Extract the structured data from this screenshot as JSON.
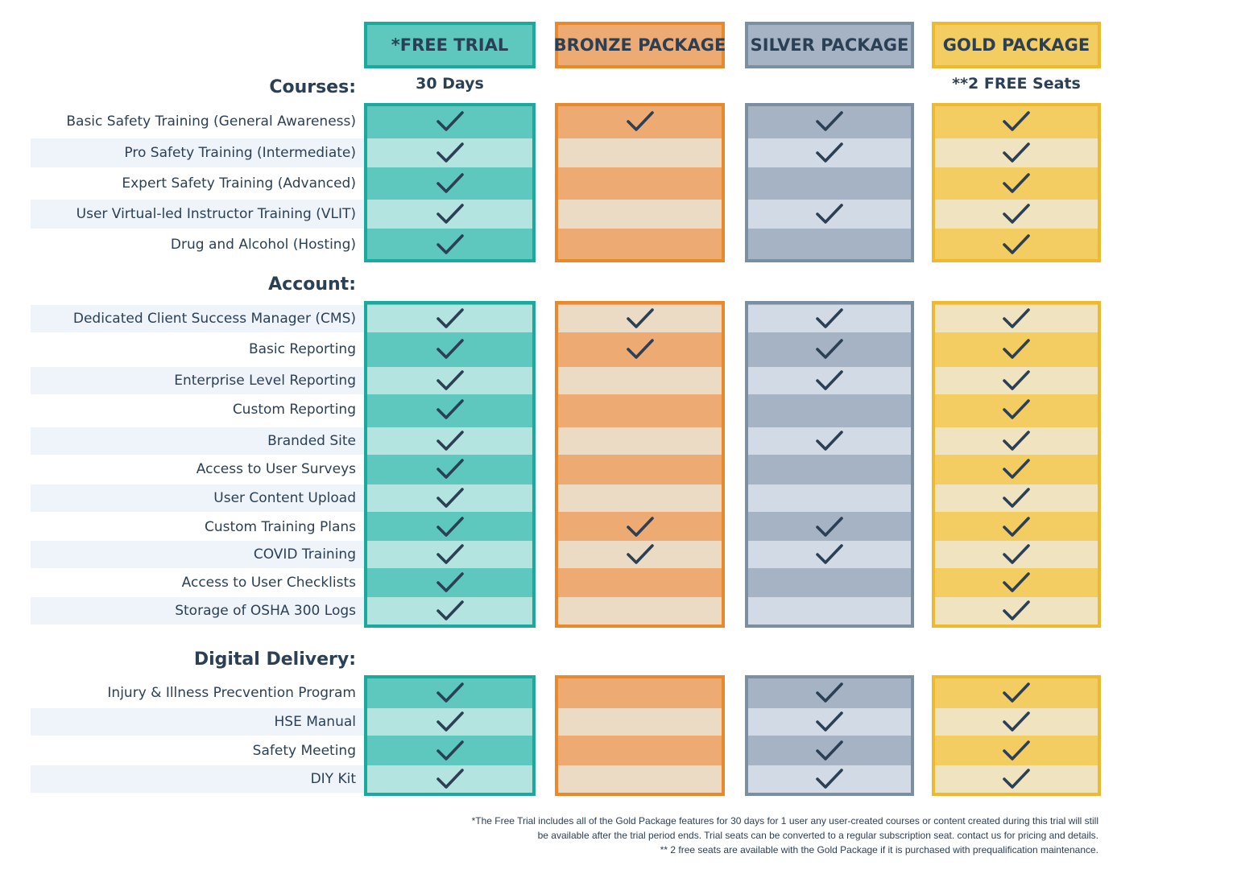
{
  "headers": [
    {
      "label": "*FREE TRIAL",
      "sub": "30 Days",
      "bg": "#5ec8be",
      "border": "#1aa99c",
      "dark": "#5ec8be",
      "light": "#b3e4e0"
    },
    {
      "label": "BRONZE PACKAGE",
      "sub": "",
      "bg": "#edaa72",
      "border": "#e8892c",
      "dark": "#edaa72",
      "light": "#ebdac4"
    },
    {
      "label": "SILVER PACKAGE",
      "sub": "",
      "bg": "#a5b3c4",
      "border": "#7b8ea2",
      "dark": "#a5b3c4",
      "light": "#d2dbe5"
    },
    {
      "label": "GOLD PACKAGE",
      "sub": "**2 FREE Seats",
      "bg": "#f3cd62",
      "border": "#efb92f",
      "dark": "#f3cd62",
      "light": "#efe4bf"
    }
  ],
  "sections": [
    {
      "title": "Courses:",
      "rows": [
        {
          "label": "Basic Safety Training (General Awareness)",
          "checks": [
            true,
            true,
            true,
            true
          ]
        },
        {
          "label": "Pro Safety Training (Intermediate)",
          "checks": [
            true,
            false,
            true,
            true
          ]
        },
        {
          "label": "Expert Safety Training (Advanced)",
          "checks": [
            true,
            false,
            false,
            true
          ]
        },
        {
          "label": "User Virtual-led Instructor Training (VLIT)",
          "checks": [
            true,
            false,
            true,
            true
          ]
        },
        {
          "label": "Drug and Alcohol (Hosting)",
          "checks": [
            true,
            false,
            false,
            true
          ]
        }
      ]
    },
    {
      "title": "Account:",
      "rows": [
        {
          "label": "Dedicated Client Success Manager (CMS)",
          "checks": [
            true,
            true,
            true,
            true
          ]
        },
        {
          "label": "Basic Reporting",
          "checks": [
            true,
            true,
            true,
            true
          ]
        },
        {
          "label": "Enterprise Level Reporting",
          "checks": [
            true,
            false,
            true,
            true
          ]
        },
        {
          "label": "Custom Reporting",
          "checks": [
            true,
            false,
            false,
            true
          ]
        },
        {
          "label": "Branded Site",
          "checks": [
            true,
            false,
            true,
            true
          ]
        },
        {
          "label": "Access to User Surveys",
          "checks": [
            true,
            false,
            false,
            true
          ]
        },
        {
          "label": "User Content Upload",
          "checks": [
            true,
            false,
            false,
            true
          ]
        },
        {
          "label": "Custom Training Plans",
          "checks": [
            true,
            true,
            true,
            true
          ]
        },
        {
          "label": "COVID Training",
          "checks": [
            true,
            true,
            true,
            true
          ]
        },
        {
          "label": "Access to User Checklists",
          "checks": [
            true,
            false,
            false,
            true
          ]
        },
        {
          "label": "Storage of OSHA 300 Logs",
          "checks": [
            true,
            false,
            false,
            true
          ]
        }
      ]
    },
    {
      "title": "Digital Delivery:",
      "rows": [
        {
          "label": "Injury & Illness Precvention Program",
          "checks": [
            true,
            false,
            true,
            true
          ]
        },
        {
          "label": "HSE Manual",
          "checks": [
            true,
            false,
            true,
            true
          ]
        },
        {
          "label": "Safety Meeting",
          "checks": [
            true,
            false,
            true,
            true
          ]
        },
        {
          "label": "DIY Kit",
          "checks": [
            true,
            false,
            true,
            true
          ]
        }
      ]
    }
  ],
  "footnotes": [
    "*The Free Trial includes all of the Gold Package features for 30 days for 1 user any user-created courses or content created during this trial will still",
    "be available after the trial period ends. Trial seats can be converted to a regular subscription seat. contact us for pricing and details.",
    "** 2 free seats are available with the Gold Package if it is purchased with prequalification maintenance."
  ],
  "check_color": "#2b3f55"
}
